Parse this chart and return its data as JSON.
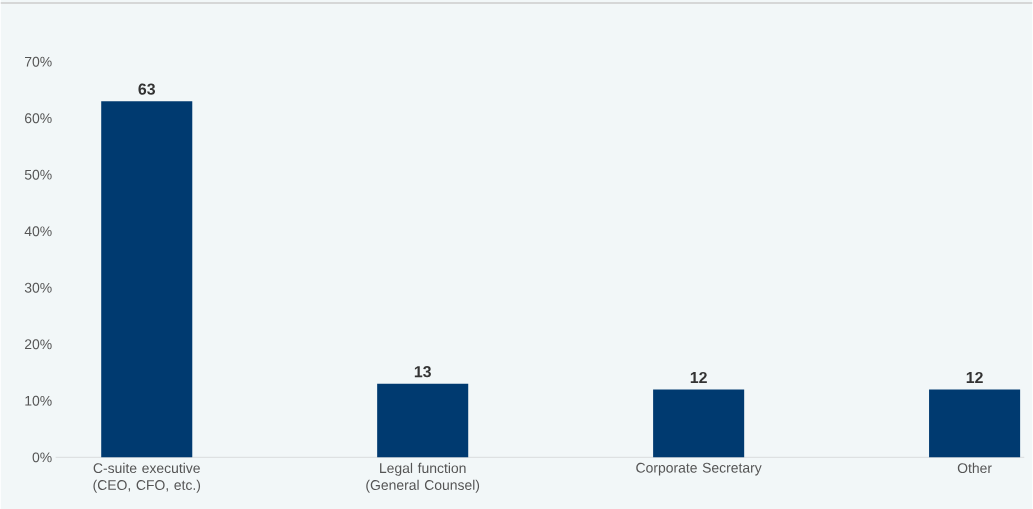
{
  "chart_data": {
    "type": "bar",
    "categories": [
      "C-suite executive (CEO, CFO, etc.)",
      "Legal function (General Counsel)",
      "Corporate Secretary",
      "Other"
    ],
    "values": [
      63,
      13,
      12,
      12
    ],
    "color": "#003a70",
    "ylim": [
      0,
      70
    ],
    "yticks": [
      {
        "value": 0,
        "label": "0%"
      },
      {
        "value": 10,
        "label": "10%"
      },
      {
        "value": 20,
        "label": "20%"
      },
      {
        "value": 30,
        "label": "30%"
      },
      {
        "value": 40,
        "label": "40%"
      },
      {
        "value": 50,
        "label": "50%"
      },
      {
        "value": 60,
        "label": "60%"
      },
      {
        "value": 70,
        "label": "70%"
      }
    ],
    "data_labels": true
  }
}
